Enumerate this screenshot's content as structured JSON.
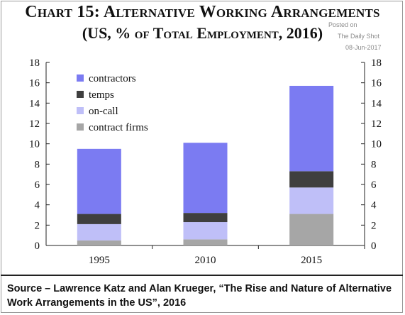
{
  "title_line1": "Chart 15: Alternative Working Arrangements",
  "title_line2": "(US, % of Total Employment, 2016)",
  "watermark": {
    "line1": "Posted on",
    "line2": "The Daily Shot",
    "line3": "08-Jun-2017"
  },
  "source": "Source – Lawrence Katz and Alan Krueger, “The Rise and Nature of Alternative Work Arrangements in the US”, 2016",
  "chart_data": {
    "type": "bar",
    "stacked": true,
    "categories": [
      "1995",
      "2010",
      "2015"
    ],
    "series": [
      {
        "name": "contract firms",
        "color": "#a6a6a6",
        "values": [
          0.5,
          0.6,
          3.1
        ]
      },
      {
        "name": "on-call",
        "color": "#bfbff8",
        "values": [
          1.6,
          1.7,
          2.6
        ]
      },
      {
        "name": "temps",
        "color": "#3f3f3f",
        "values": [
          1.0,
          0.9,
          1.6
        ]
      },
      {
        "name": "contractors",
        "color": "#7b7bf2",
        "values": [
          6.4,
          6.9,
          8.4
        ]
      }
    ],
    "legend_order": [
      "contractors",
      "temps",
      "on-call",
      "contract firms"
    ],
    "legend_position": "top-left",
    "ylim": [
      0,
      18
    ],
    "yticks": [
      0,
      2,
      4,
      6,
      8,
      10,
      12,
      14,
      16,
      18
    ],
    "dual_y_axis": true,
    "grid": false
  }
}
